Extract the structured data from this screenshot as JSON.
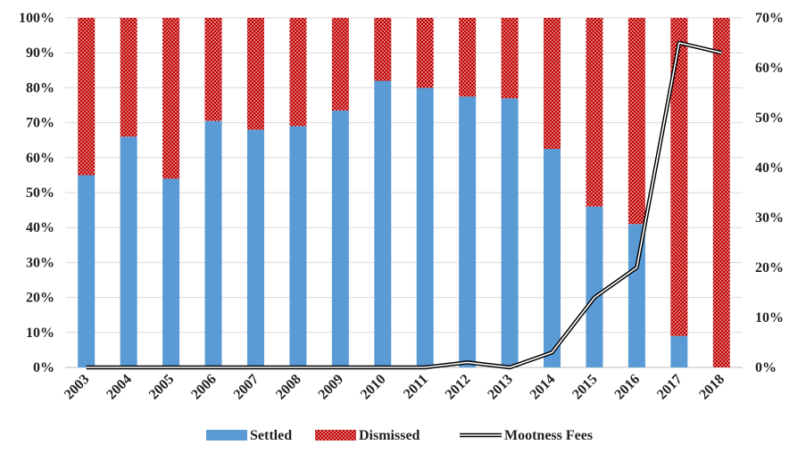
{
  "chart_data": {
    "type": "bar",
    "stacked": true,
    "categories": [
      "2003",
      "2004",
      "2005",
      "2006",
      "2007",
      "2008",
      "2009",
      "2010",
      "2011",
      "2012",
      "2013",
      "2014",
      "2015",
      "2016",
      "2017",
      "2018"
    ],
    "series": [
      {
        "name": "Settled",
        "axis": "left",
        "color": "#5b9bd5",
        "values": [
          55,
          66,
          54,
          70.5,
          68,
          69,
          73.5,
          82,
          80,
          77.5,
          77,
          62.5,
          46,
          41,
          9,
          0
        ]
      },
      {
        "name": "Dismissed",
        "axis": "left",
        "color": "#c00000",
        "pattern": "dots",
        "values": [
          45,
          34,
          46,
          29.5,
          32,
          31,
          26.5,
          18,
          20,
          22.5,
          23,
          37.5,
          54,
          59,
          91,
          100
        ]
      },
      {
        "name": "Mootness Fees",
        "axis": "right",
        "type": "line",
        "color": "#000000",
        "values": [
          0,
          0,
          0,
          0,
          0,
          0,
          0,
          0,
          0,
          1,
          0,
          3,
          14,
          20,
          65,
          63
        ]
      }
    ],
    "y_left": {
      "min": 0,
      "max": 100,
      "step": 10,
      "ticks": [
        "0%",
        "10%",
        "20%",
        "30%",
        "40%",
        "50%",
        "60%",
        "70%",
        "80%",
        "90%",
        "100%"
      ]
    },
    "y_right": {
      "min": 0,
      "max": 70,
      "step": 10,
      "ticks": [
        "0%",
        "10%",
        "20%",
        "30%",
        "40%",
        "50%",
        "60%",
        "70%"
      ]
    },
    "grid": true,
    "legend_position": "bottom",
    "legend": [
      "Settled",
      "Dismissed",
      "Mootness Fees"
    ]
  }
}
